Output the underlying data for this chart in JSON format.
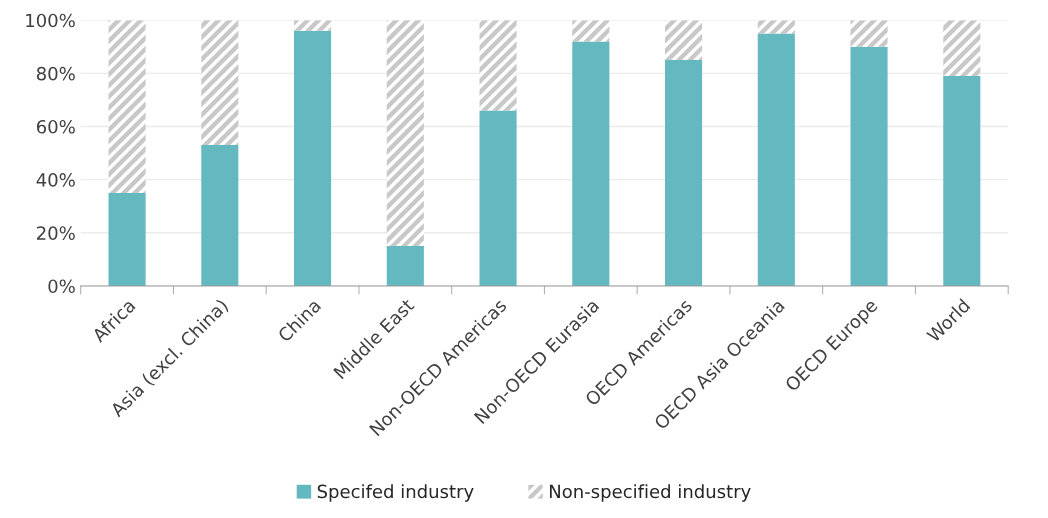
{
  "chart_data": {
    "type": "bar",
    "stacked": true,
    "categories": [
      "Africa",
      "Asia (excl. China)",
      "China",
      "Middle East",
      "Non-OECD Americas",
      "Non-OECD Eurasia",
      "OECD Americas",
      "OECD Asia Oceania",
      "OECD Europe",
      "World"
    ],
    "series": [
      {
        "name": "Specifed industry",
        "color": "#64b8c0",
        "values": [
          35,
          53,
          96,
          15,
          66,
          92,
          85,
          95,
          90,
          79
        ]
      },
      {
        "name": "Non-specified industry",
        "color": "#c8c8c8",
        "values": [
          65,
          47,
          4,
          85,
          34,
          8,
          15,
          5,
          10,
          21
        ]
      }
    ],
    "ylim": [
      0,
      100
    ],
    "yticks": [
      {
        "value": 0,
        "label": "0%"
      },
      {
        "value": 20,
        "label": "20%"
      },
      {
        "value": 40,
        "label": "40%"
      },
      {
        "value": 60,
        "label": "60%"
      },
      {
        "value": 80,
        "label": "80%"
      },
      {
        "value": 100,
        "label": "100%"
      }
    ],
    "grid": "y",
    "legend": "bottom"
  }
}
